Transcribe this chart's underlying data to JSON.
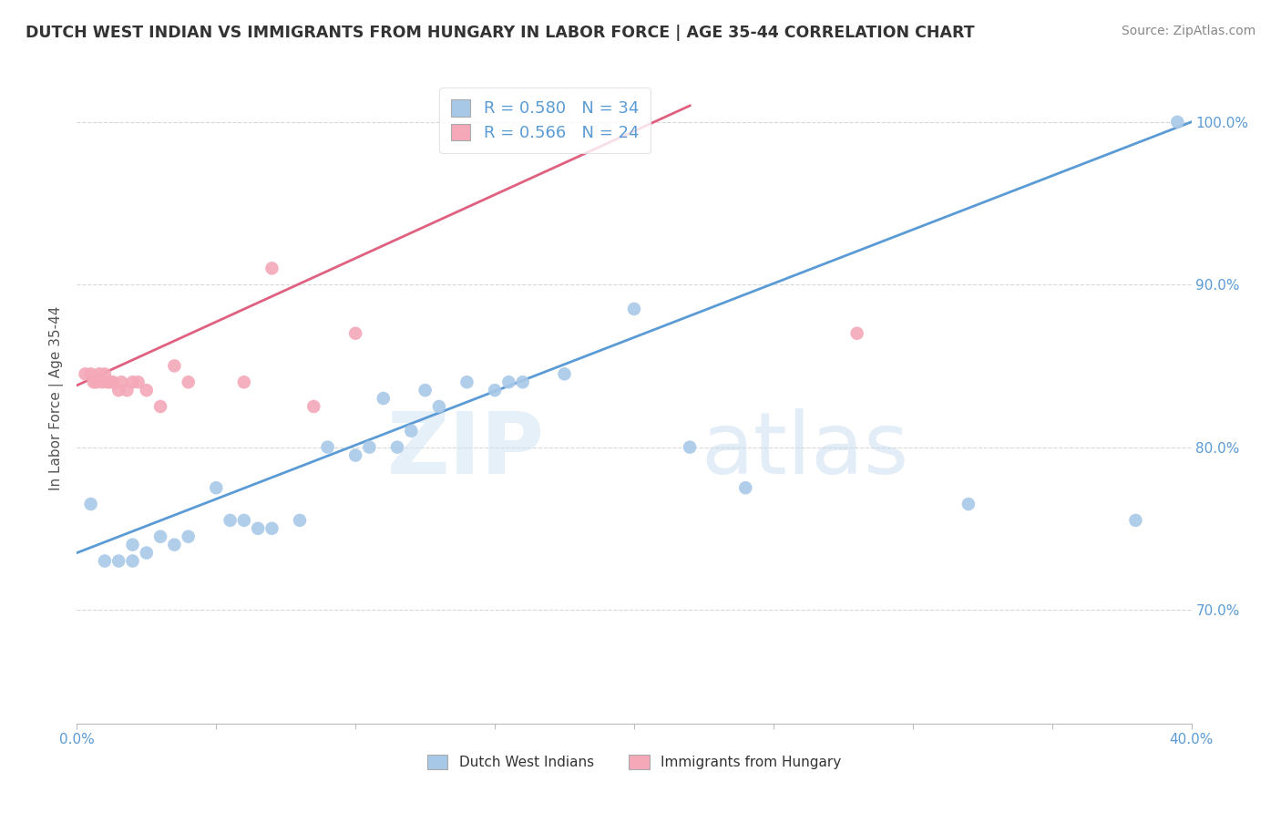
{
  "title": "DUTCH WEST INDIAN VS IMMIGRANTS FROM HUNGARY IN LABOR FORCE | AGE 35-44 CORRELATION CHART",
  "source": "Source: ZipAtlas.com",
  "ylabel": "In Labor Force | Age 35-44",
  "watermark_zip": "ZIP",
  "watermark_atlas": "atlas",
  "xmin": 0.0,
  "xmax": 0.4,
  "ymin": 0.63,
  "ymax": 1.03,
  "xticks": [
    0.0,
    0.05,
    0.1,
    0.15,
    0.2,
    0.25,
    0.3,
    0.35,
    0.4
  ],
  "yticks": [
    0.7,
    0.8,
    0.9,
    1.0
  ],
  "ytick_labels": [
    "70.0%",
    "80.0%",
    "90.0%",
    "100.0%"
  ],
  "xtick_labels": [
    "0.0%",
    "",
    "",
    "",
    "",
    "",
    "",
    "",
    "40.0%"
  ],
  "blue_color": "#a8c8e8",
  "pink_color": "#f4a8b8",
  "blue_line_color": "#5b9bd5",
  "pink_line_color": "#e06080",
  "legend_blue_R": "0.580",
  "legend_blue_N": "34",
  "legend_pink_R": "0.566",
  "legend_pink_N": "24",
  "legend_label_blue": "Dutch West Indians",
  "legend_label_pink": "Immigrants from Hungary",
  "blue_scatter_x": [
    0.005,
    0.01,
    0.015,
    0.02,
    0.02,
    0.025,
    0.03,
    0.035,
    0.04,
    0.05,
    0.055,
    0.06,
    0.065,
    0.07,
    0.08,
    0.09,
    0.1,
    0.105,
    0.11,
    0.115,
    0.12,
    0.125,
    0.13,
    0.14,
    0.15,
    0.155,
    0.16,
    0.175,
    0.2,
    0.22,
    0.24,
    0.32,
    0.38,
    0.395
  ],
  "blue_scatter_y": [
    0.765,
    0.73,
    0.73,
    0.74,
    0.73,
    0.735,
    0.745,
    0.74,
    0.745,
    0.775,
    0.755,
    0.755,
    0.75,
    0.75,
    0.755,
    0.8,
    0.795,
    0.8,
    0.83,
    0.8,
    0.81,
    0.835,
    0.825,
    0.84,
    0.835,
    0.84,
    0.84,
    0.845,
    0.885,
    0.8,
    0.775,
    0.765,
    0.755,
    1.0
  ],
  "pink_scatter_x": [
    0.003,
    0.005,
    0.006,
    0.007,
    0.008,
    0.009,
    0.01,
    0.011,
    0.012,
    0.013,
    0.015,
    0.016,
    0.018,
    0.02,
    0.022,
    0.025,
    0.03,
    0.035,
    0.04,
    0.06,
    0.07,
    0.085,
    0.1,
    0.28
  ],
  "pink_scatter_y": [
    0.845,
    0.845,
    0.84,
    0.84,
    0.845,
    0.84,
    0.845,
    0.84,
    0.84,
    0.84,
    0.835,
    0.84,
    0.835,
    0.84,
    0.84,
    0.835,
    0.825,
    0.85,
    0.84,
    0.84,
    0.91,
    0.825,
    0.87,
    0.87
  ],
  "blue_trendline_x": [
    0.0,
    0.4
  ],
  "blue_trendline_y": [
    0.735,
    1.0
  ],
  "pink_trendline_x": [
    0.0,
    0.22
  ],
  "pink_trendline_y": [
    0.838,
    1.01
  ],
  "grid_color": "#c8c8c8",
  "bg_color": "#ffffff",
  "tick_color": "#5b9bd5",
  "title_color": "#333333",
  "axis_color": "#bbbbbb"
}
